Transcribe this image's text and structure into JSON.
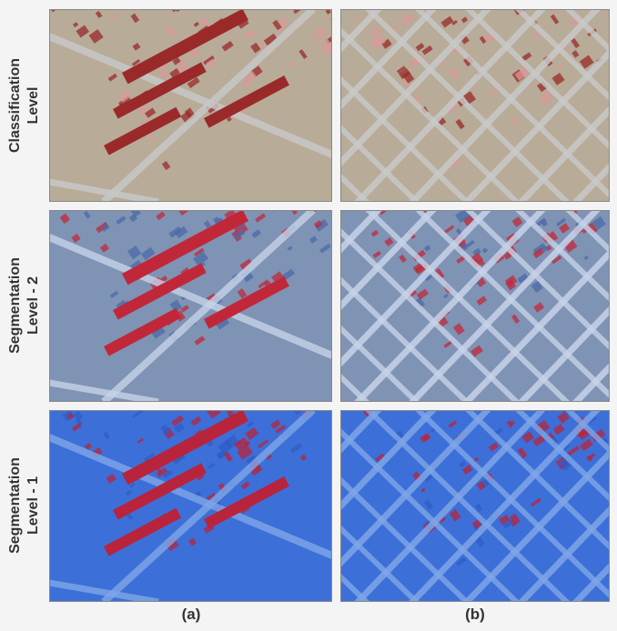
{
  "row_labels": [
    {
      "line1": "Classification",
      "line2": "Level"
    },
    {
      "line1": "Segmentation",
      "line2": "Level - 2"
    },
    {
      "line1": "Segmentation",
      "line2": "Level - 1"
    }
  ],
  "column_labels": [
    "(a)",
    "(b)"
  ]
}
